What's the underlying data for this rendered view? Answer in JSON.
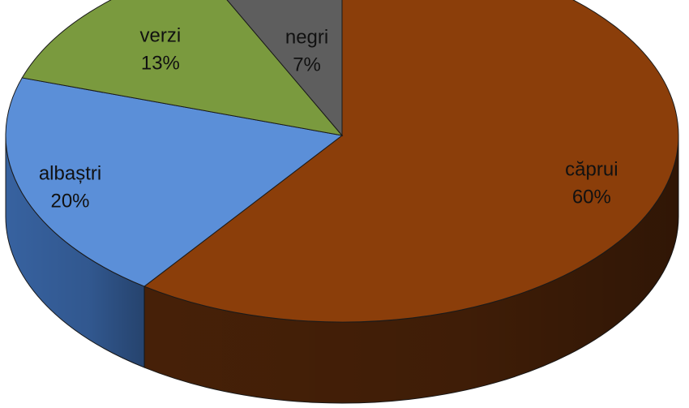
{
  "chart_data": {
    "type": "pie",
    "style": "3d",
    "title": "",
    "slices": [
      {
        "label": "căprui",
        "value": 60,
        "percent_label": "60%",
        "color": "#8B3E0A",
        "side_color": "#4A2208"
      },
      {
        "label": "albaștri",
        "value": 20,
        "percent_label": "20%",
        "color": "#5B8FD8",
        "side_color": "#3A67A8"
      },
      {
        "label": "verzi",
        "value": 13,
        "percent_label": "13%",
        "color": "#7A9A3E",
        "side_color": "#55702A"
      },
      {
        "label": "negri",
        "value": 7,
        "percent_label": "7%",
        "color": "#5E5E5E",
        "side_color": "#3A3A3A"
      }
    ],
    "legend": "none"
  }
}
